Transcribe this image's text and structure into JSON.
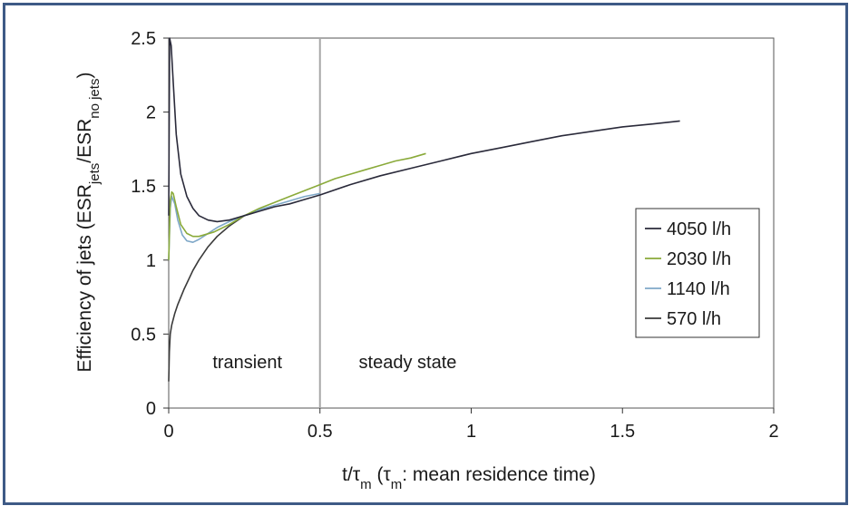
{
  "chart_data": {
    "type": "line",
    "title": "",
    "xlabel": "t/τm  (τm: mean residence time)",
    "xlabel_parts": {
      "t": "t/τ",
      "sub1": "m",
      "rest": "  (τ",
      "sub2": "m",
      "rest2": ": mean residence time)"
    },
    "ylabel": "Efficiency of jets (ESRjets/ESRno jets)",
    "ylabel_parts": {
      "pre": "Efficiency of jets (ESR",
      "sub1": "jets",
      "mid": "/ESR",
      "sub2": "no jets",
      "post": ")"
    },
    "xlim": [
      0,
      2
    ],
    "ylim": [
      0,
      2.5
    ],
    "xticks": [
      "0",
      "0.5",
      "1",
      "1.5",
      "2"
    ],
    "xtick_values": [
      0,
      0.5,
      1,
      1.5,
      2
    ],
    "yticks": [
      "0",
      "0.5",
      "1",
      "1.5",
      "2",
      "2.5"
    ],
    "ytick_values": [
      0,
      0.5,
      1,
      1.5,
      2,
      2.5
    ],
    "grid": false,
    "legend_position": "right",
    "divider_x": 0.5,
    "annotations": [
      {
        "text": "transient",
        "x": 0.26,
        "y": 0.27
      },
      {
        "text": "steady state",
        "x": 0.79,
        "y": 0.27
      }
    ],
    "series": [
      {
        "name": "4050 l/h",
        "color": "#2a2a3a",
        "x": [
          0,
          0.003,
          0.008,
          0.015,
          0.025,
          0.04,
          0.06,
          0.08,
          0.1,
          0.13,
          0.16,
          0.2,
          0.25,
          0.3,
          0.35,
          0.4,
          0.45,
          0.5,
          0.6,
          0.7,
          0.8,
          0.9,
          1.0,
          1.1,
          1.2,
          1.3,
          1.4,
          1.5,
          1.6,
          1.69
        ],
        "y": [
          1.3,
          2.5,
          2.45,
          2.2,
          1.85,
          1.58,
          1.43,
          1.35,
          1.3,
          1.27,
          1.26,
          1.27,
          1.3,
          1.33,
          1.36,
          1.38,
          1.41,
          1.44,
          1.51,
          1.57,
          1.62,
          1.67,
          1.72,
          1.76,
          1.8,
          1.84,
          1.87,
          1.9,
          1.92,
          1.94
        ]
      },
      {
        "name": "2030 l/h",
        "color": "#8aaa3a",
        "x": [
          0,
          0.005,
          0.01,
          0.015,
          0.025,
          0.04,
          0.06,
          0.08,
          0.1,
          0.15,
          0.2,
          0.25,
          0.3,
          0.35,
          0.4,
          0.45,
          0.5,
          0.55,
          0.6,
          0.65,
          0.7,
          0.75,
          0.8,
          0.85
        ],
        "y": [
          1.0,
          1.4,
          1.46,
          1.45,
          1.36,
          1.24,
          1.18,
          1.16,
          1.16,
          1.19,
          1.24,
          1.3,
          1.35,
          1.39,
          1.43,
          1.47,
          1.51,
          1.55,
          1.58,
          1.61,
          1.64,
          1.67,
          1.69,
          1.72
        ]
      },
      {
        "name": "1140 l/h",
        "color": "#7fa8c8",
        "x": [
          0,
          0.005,
          0.01,
          0.02,
          0.03,
          0.045,
          0.06,
          0.08,
          0.1,
          0.13,
          0.16,
          0.2,
          0.25,
          0.3,
          0.35,
          0.4,
          0.45,
          0.5
        ],
        "y": [
          1.0,
          1.35,
          1.43,
          1.38,
          1.27,
          1.17,
          1.13,
          1.12,
          1.14,
          1.18,
          1.22,
          1.26,
          1.3,
          1.34,
          1.37,
          1.4,
          1.43,
          1.45
        ]
      },
      {
        "name": "570 l/h",
        "color": "#3a3a3a",
        "x": [
          0,
          0.002,
          0.005,
          0.01,
          0.02,
          0.03,
          0.05,
          0.08,
          0.1,
          0.13,
          0.16,
          0.2,
          0.25,
          0.28
        ],
        "y": [
          0.18,
          0.38,
          0.5,
          0.56,
          0.64,
          0.7,
          0.8,
          0.93,
          1.0,
          1.09,
          1.16,
          1.23,
          1.3,
          1.32
        ]
      }
    ]
  }
}
